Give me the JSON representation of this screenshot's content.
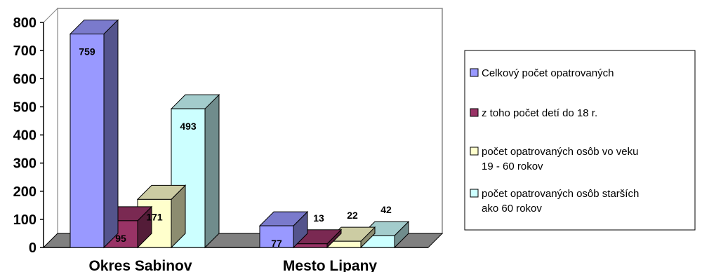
{
  "chart_data": {
    "type": "bar",
    "style": "3d-clustered-column",
    "categories": [
      "Okres Sabinov",
      "Mesto Lipany"
    ],
    "series": [
      {
        "name": "Celkový počet opatrovaných",
        "values": [
          759,
          77
        ],
        "color": "#9999ff"
      },
      {
        "name": "z toho počet detí do 18 r.",
        "values": [
          95,
          13
        ],
        "color": "#993366"
      },
      {
        "name": "počet opatrovaných osôb  vo veku 19 - 60 rokov",
        "legend_lines": [
          "počet opatrovaných osôb  vo veku",
          "19 - 60 rokov"
        ],
        "values": [
          171,
          22
        ],
        "color": "#ffffcc"
      },
      {
        "name": "počet  opatrovaných osôb starších ako 60 rokov",
        "legend_lines": [
          "počet  opatrovaných osôb starších",
          "ako 60 rokov"
        ],
        "values": [
          493,
          42
        ],
        "color": "#ccffff"
      }
    ],
    "y_ticks": [
      "0",
      "100",
      "200",
      "300",
      "400",
      "500",
      "600",
      "700",
      "800"
    ],
    "ylim": [
      0,
      800
    ],
    "grid": false,
    "legend_position": "right",
    "data_labels": true
  }
}
